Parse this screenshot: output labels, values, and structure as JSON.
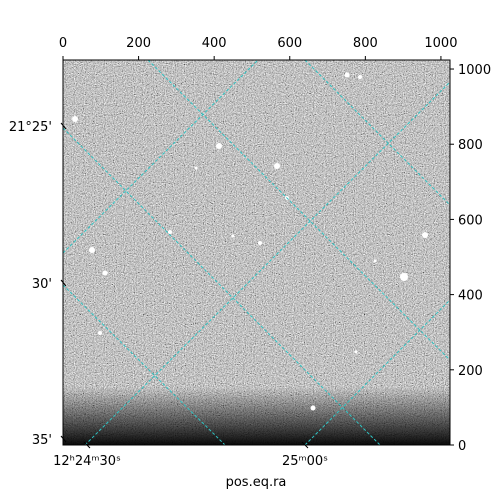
{
  "chart_data": {
    "type": "image",
    "x_label": "pos.eq.ra",
    "xlim": [
      0,
      1024
    ],
    "xticks": [
      0,
      200,
      400,
      600,
      800,
      1000
    ],
    "ylim": [
      0,
      1024
    ],
    "yticks": [
      0,
      200,
      400,
      600,
      800,
      1000
    ],
    "ra_ticks": [
      "12ʰ24ᵐ30ˢ",
      "25ᵐ00ˢ"
    ],
    "dec_ticks": [
      "21°25'",
      "30'",
      "35'"
    ],
    "grid_color": "#2ec4c4"
  }
}
